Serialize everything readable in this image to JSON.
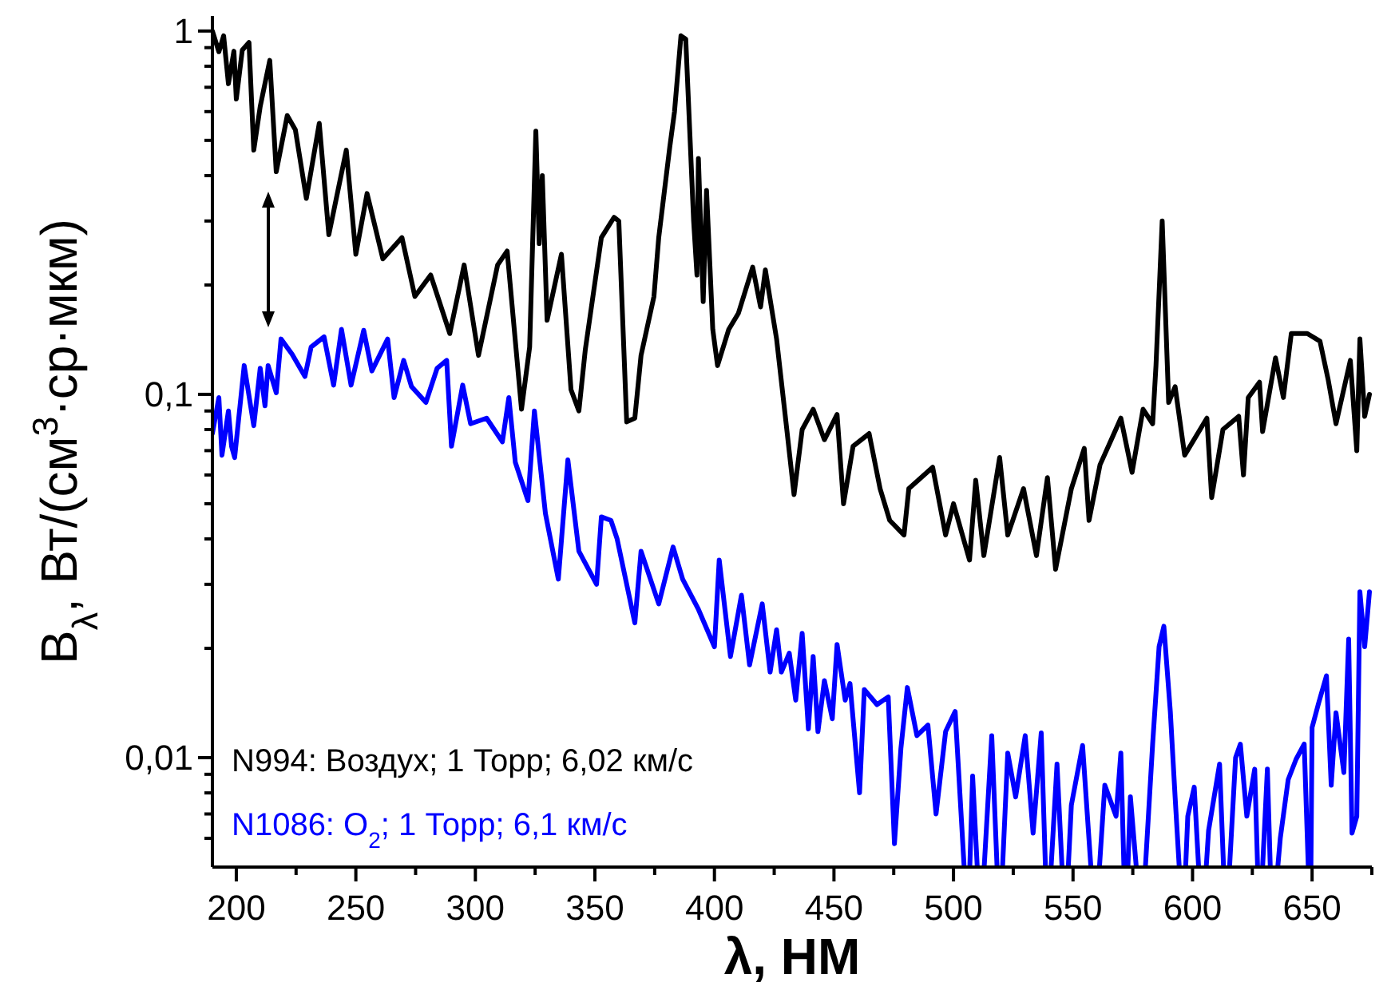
{
  "chart_data": {
    "type": "line",
    "xlabel": "λ, НМ",
    "ylabel": "B$_{λ}$, Вт/(см$^{3}$·ср·мкм)",
    "log": "y",
    "legend": "bottom left",
    "line_style": "solid",
    "marker": "none",
    "grid": false,
    "xlim": [
      190,
      675
    ],
    "xticks": [
      200,
      {
        "value": 225,
        "label": null
      },
      250,
      {
        "value": 275,
        "label": null
      },
      300,
      {
        "value": 325,
        "label": null
      },
      350,
      {
        "value": 375,
        "label": null
      },
      400,
      {
        "value": 425,
        "label": null
      },
      450,
      {
        "value": 475,
        "label": null
      },
      500,
      {
        "value": 525,
        "label": null
      },
      550,
      {
        "value": 575,
        "label": null
      },
      600,
      {
        "value": 625,
        "label": null
      },
      650,
      {
        "value": 675,
        "label": null
      }
    ],
    "ylim": [
      0.005,
      1.1
    ],
    "yticks": [
      {
        "value": 0.006,
        "label": null
      },
      {
        "value": 0.007,
        "label": null
      },
      {
        "value": 0.008,
        "label": null
      },
      {
        "value": 0.009,
        "label": null
      },
      {
        "value": 0.01,
        "label": "0,01"
      },
      {
        "value": 0.02,
        "label": null
      },
      {
        "value": 0.03,
        "label": null
      },
      {
        "value": 0.04,
        "label": null
      },
      {
        "value": 0.05,
        "label": null
      },
      {
        "value": 0.06,
        "label": null
      },
      {
        "value": 0.07,
        "label": null
      },
      {
        "value": 0.08,
        "label": null
      },
      {
        "value": 0.09,
        "label": null
      },
      {
        "value": 0.1,
        "label": "0,1"
      },
      {
        "value": 0.2,
        "label": null
      },
      {
        "value": 0.3,
        "label": null
      },
      {
        "value": 0.4,
        "label": null
      },
      {
        "value": 0.5,
        "label": null
      },
      {
        "value": 0.6,
        "label": null
      },
      {
        "value": 0.7,
        "label": null
      },
      {
        "value": 0.8,
        "label": null
      },
      {
        "value": 0.9,
        "label": null
      },
      1
    ],
    "series": [
      {
        "name": "N994: Воздух; 1 Торр; 6,02 км/с",
        "color": "#000000",
        "x": [
          190,
          192.7,
          194.7,
          196.7,
          199,
          200,
          202.5,
          205.3,
          207.3,
          210,
          214,
          216.7,
          221.3,
          224.7,
          229.3,
          234.7,
          238.7,
          246,
          250,
          254.7,
          261.3,
          269.3,
          274.7,
          281.3,
          289.3,
          295.3,
          301.3,
          309.3,
          313.3,
          319.3,
          322.7,
          325.3,
          326.7,
          328,
          330,
          336,
          340,
          343.3,
          346,
          352.7,
          358,
          360,
          363.3,
          366.7,
          369.3,
          374.7,
          376.7,
          381.3,
          383.3,
          386,
          388,
          391.3,
          392.7,
          393.3,
          395.3,
          396.7,
          399.3,
          401.3,
          406,
          410,
          416,
          419.3,
          421.3,
          426,
          430,
          433.3,
          436.7,
          441.3,
          446,
          451.3,
          454,
          458,
          464.7,
          469.3,
          473.3,
          479.3,
          481.3,
          491.3,
          496.7,
          500,
          506.7,
          509.3,
          512.7,
          519.3,
          522.7,
          529.3,
          534.7,
          539.3,
          542.7,
          549.3,
          554.7,
          556.7,
          561.3,
          566,
          570,
          574.7,
          579.3,
          583.3,
          584.7,
          587.3,
          590,
          592.7,
          596.7,
          606,
          608,
          612.7,
          619.3,
          621.3,
          623.3,
          628,
          629.3,
          634.7,
          638,
          641.3,
          648,
          653.3,
          656.7,
          660,
          666,
          668.7,
          670,
          672,
          674
        ],
        "values": [
          1.0,
          0.877,
          0.97,
          0.716,
          0.88,
          0.65,
          0.886,
          0.93,
          0.47,
          0.62,
          0.83,
          0.41,
          0.585,
          0.535,
          0.346,
          0.557,
          0.275,
          0.47,
          0.243,
          0.357,
          0.236,
          0.27,
          0.186,
          0.213,
          0.147,
          0.227,
          0.128,
          0.227,
          0.248,
          0.091,
          0.135,
          0.53,
          0.26,
          0.4,
          0.16,
          0.243,
          0.103,
          0.09,
          0.133,
          0.27,
          0.307,
          0.3,
          0.084,
          0.086,
          0.128,
          0.186,
          0.27,
          0.478,
          0.6,
          0.97,
          0.95,
          0.3,
          0.213,
          0.446,
          0.18,
          0.364,
          0.151,
          0.12,
          0.151,
          0.167,
          0.224,
          0.174,
          0.22,
          0.142,
          0.083,
          0.053,
          0.08,
          0.091,
          0.075,
          0.088,
          0.05,
          0.072,
          0.078,
          0.055,
          0.045,
          0.041,
          0.055,
          0.063,
          0.041,
          0.05,
          0.035,
          0.058,
          0.036,
          0.067,
          0.041,
          0.055,
          0.036,
          0.059,
          0.033,
          0.055,
          0.071,
          0.045,
          0.064,
          0.075,
          0.086,
          0.061,
          0.091,
          0.083,
          0.12,
          0.3,
          0.095,
          0.105,
          0.068,
          0.086,
          0.052,
          0.08,
          0.087,
          0.06,
          0.098,
          0.108,
          0.079,
          0.126,
          0.098,
          0.147,
          0.147,
          0.14,
          0.11,
          0.083,
          0.124,
          0.07,
          0.142,
          0.087,
          0.1
        ]
      },
      {
        "name": "N1086: O$_{2}$; 1 Торр; 6,1 км/с",
        "color": "#0000ff",
        "x": [
          190,
          192.7,
          194,
          196.7,
          198,
          199.3,
          203.3,
          207.3,
          210,
          212,
          213.3,
          216.7,
          218.7,
          223.3,
          228.7,
          231.3,
          236.7,
          240.7,
          244,
          248,
          253.3,
          256.7,
          263.3,
          266,
          270,
          273.3,
          279.3,
          284,
          288,
          290,
          294.7,
          298,
          304.7,
          311.3,
          314,
          316.7,
          322,
          324.7,
          329.3,
          334.7,
          338.7,
          343.3,
          350.7,
          352.7,
          356.7,
          359.3,
          366.7,
          369.3,
          376.7,
          382.7,
          386.7,
          393.3,
          400,
          402,
          406.7,
          411.3,
          414.7,
          420,
          423.3,
          426,
          428,
          431.3,
          434,
          436.7,
          439.3,
          441.3,
          443.3,
          446,
          449.3,
          451.3,
          454.7,
          456.7,
          460.7,
          462.7,
          468,
          472.7,
          475.3,
          478,
          480.7,
          484.7,
          489.3,
          492.7,
          496.7,
          500.7,
          506,
          508,
          511.3,
          516,
          519.3,
          522.7,
          526,
          530,
          533.3,
          536.7,
          539.3,
          543.3,
          546.7,
          549.3,
          554,
          559.3,
          563.3,
          568,
          570,
          572,
          574,
          578.7,
          583.3,
          586,
          588,
          590.7,
          592.7,
          596,
          598,
          600.7,
          604,
          606.7,
          611.3,
          614,
          618,
          620,
          622.7,
          626,
          628,
          631.3,
          633.3,
          636.7,
          640,
          643.3,
          646.7,
          649.3,
          650,
          652.7,
          656,
          658,
          660,
          663.3,
          665.3,
          666.7,
          668.7,
          670,
          672,
          674
        ],
        "values": [
          0.078,
          0.098,
          0.068,
          0.09,
          0.072,
          0.067,
          0.12,
          0.082,
          0.118,
          0.093,
          0.12,
          0.101,
          0.142,
          0.129,
          0.112,
          0.135,
          0.144,
          0.106,
          0.151,
          0.106,
          0.15,
          0.116,
          0.142,
          0.098,
          0.124,
          0.105,
          0.095,
          0.118,
          0.124,
          0.072,
          0.106,
          0.083,
          0.086,
          0.074,
          0.098,
          0.065,
          0.051,
          0.09,
          0.047,
          0.031,
          0.066,
          0.037,
          0.03,
          0.046,
          0.045,
          0.04,
          0.0235,
          0.037,
          0.0265,
          0.038,
          0.031,
          0.0256,
          0.0202,
          0.035,
          0.019,
          0.028,
          0.018,
          0.0265,
          0.0172,
          0.0225,
          0.0172,
          0.0194,
          0.0144,
          0.022,
          0.012,
          0.019,
          0.0118,
          0.0163,
          0.0128,
          0.0205,
          0.0144,
          0.016,
          0.008,
          0.0154,
          0.014,
          0.0147,
          0.0058,
          0.0106,
          0.0156,
          0.0115,
          0.0123,
          0.007,
          0.0118,
          0.0134,
          null,
          0.0089,
          null,
          0.0115,
          null,
          0.0103,
          0.0078,
          0.0115,
          0.0062,
          0.0117,
          null,
          0.0096,
          null,
          0.0074,
          0.0108,
          null,
          0.0084,
          0.0069,
          0.0103,
          null,
          0.0078,
          null,
          0.0109,
          0.0202,
          0.023,
          0.0134,
          0.0078,
          null,
          0.0069,
          0.0083,
          null,
          0.0063,
          0.0096,
          null,
          0.01,
          0.0109,
          0.0069,
          0.0093,
          null,
          0.0093,
          null,
          0.006,
          0.0087,
          0.0099,
          0.0109,
          null,
          0.0121,
          0.0141,
          0.0168,
          0.0084,
          0.0133,
          0.0091,
          0.0212,
          0.0062,
          0.0069,
          0.0286,
          0.0202,
          0.0286
        ]
      }
    ]
  }
}
